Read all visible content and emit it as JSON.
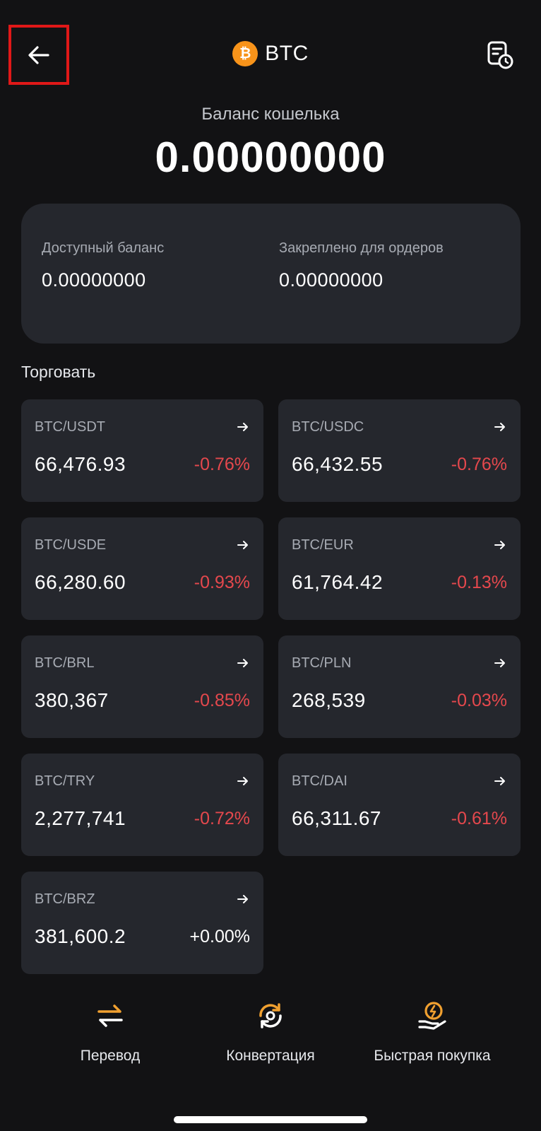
{
  "header": {
    "title": "BTC",
    "coin_symbol": "₿",
    "icons": {
      "back": "arrow-left-icon",
      "history": "history-document-icon"
    }
  },
  "balance": {
    "label": "Баланс кошелька",
    "value": "0.00000000"
  },
  "balance_card": {
    "available_label": "Доступный баланс",
    "available_value": "0.00000000",
    "locked_label": "Закреплено для ордеров",
    "locked_value": "0.00000000"
  },
  "trade": {
    "label": "Торговать",
    "pairs": [
      {
        "name": "BTC/USDT",
        "price": "66,476.93",
        "change": "-0.76%"
      },
      {
        "name": "BTC/USDC",
        "price": "66,432.55",
        "change": "-0.76%"
      },
      {
        "name": "BTC/USDE",
        "price": "66,280.60",
        "change": "-0.93%"
      },
      {
        "name": "BTC/EUR",
        "price": "61,764.42",
        "change": "-0.13%"
      },
      {
        "name": "BTC/BRL",
        "price": "380,367",
        "change": "-0.85%"
      },
      {
        "name": "BTC/PLN",
        "price": "268,539",
        "change": "-0.03%"
      },
      {
        "name": "BTC/TRY",
        "price": "2,277,741",
        "change": "-0.72%"
      },
      {
        "name": "BTC/DAI",
        "price": "66,311.67",
        "change": "-0.61%"
      },
      {
        "name": "BTC/BRZ",
        "price": "381,600.2",
        "change": "+0.00%"
      }
    ]
  },
  "actions": [
    {
      "label": "Перевод",
      "icon": "transfer-arrows-icon"
    },
    {
      "label": "Конвертация",
      "icon": "convert-cycle-icon"
    },
    {
      "label": "Быстрая покупка",
      "icon": "quick-buy-hand-icon"
    }
  ],
  "colors": {
    "accent": "#f7931a",
    "negative": "#e5484d",
    "card": "#25272d",
    "background": "#121214"
  }
}
